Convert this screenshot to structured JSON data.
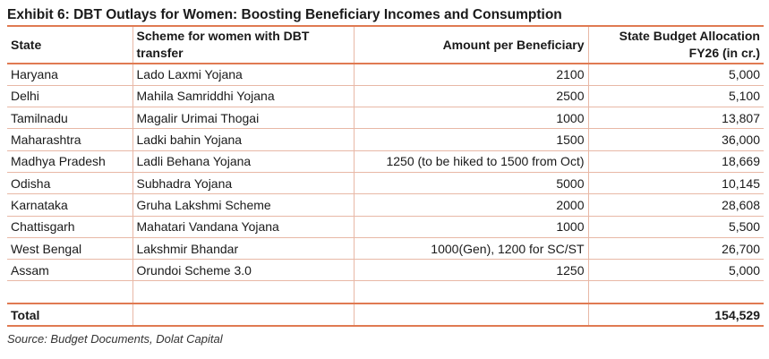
{
  "exhibit": {
    "title": "Exhibit 6: DBT Outlays for Women: Boosting Beneficiary Incomes and Consumption",
    "source": "Source: Budget Documents, Dolat Capital"
  },
  "table": {
    "headers": {
      "state": "State",
      "scheme": "Scheme for women with DBT transfer",
      "amount": "Amount per Beneficiary",
      "allocation": "State Budget Allocation FY26 (in cr.)"
    },
    "rows": [
      {
        "state": "Haryana",
        "scheme": "Lado Laxmi Yojana",
        "amount": "2100",
        "allocation": "5,000"
      },
      {
        "state": "Delhi",
        "scheme": "Mahila Samriddhi Yojana",
        "amount": "2500",
        "allocation": "5,100"
      },
      {
        "state": "Tamilnadu",
        "scheme": "Magalir Urimai Thogai",
        "amount": "1000",
        "allocation": "13,807"
      },
      {
        "state": "Maharashtra",
        "scheme": "Ladki bahin Yojana",
        "amount": "1500",
        "allocation": "36,000"
      },
      {
        "state": "Madhya Pradesh",
        "scheme": "Ladli Behana Yojana",
        "amount": "1250 (to be hiked to 1500 from Oct)",
        "allocation": "18,669"
      },
      {
        "state": "Odisha",
        "scheme": "Subhadra Yojana",
        "amount": "5000",
        "allocation": "10,145"
      },
      {
        "state": "Karnataka",
        "scheme": "Gruha Lakshmi Scheme",
        "amount": "2000",
        "allocation": "28,608"
      },
      {
        "state": "Chattisgarh",
        "scheme": "Mahatari Vandana Yojana",
        "amount": "1000",
        "allocation": "5,500"
      },
      {
        "state": "West Bengal",
        "scheme": "Lakshmir Bhandar",
        "amount": "1000(Gen), 1200 for SC/ST",
        "allocation": "26,700"
      },
      {
        "state": "Assam",
        "scheme": "Orundoi Scheme 3.0",
        "amount": "1250",
        "allocation": "5,000"
      }
    ],
    "total": {
      "label": "Total",
      "allocation": "154,529"
    }
  }
}
